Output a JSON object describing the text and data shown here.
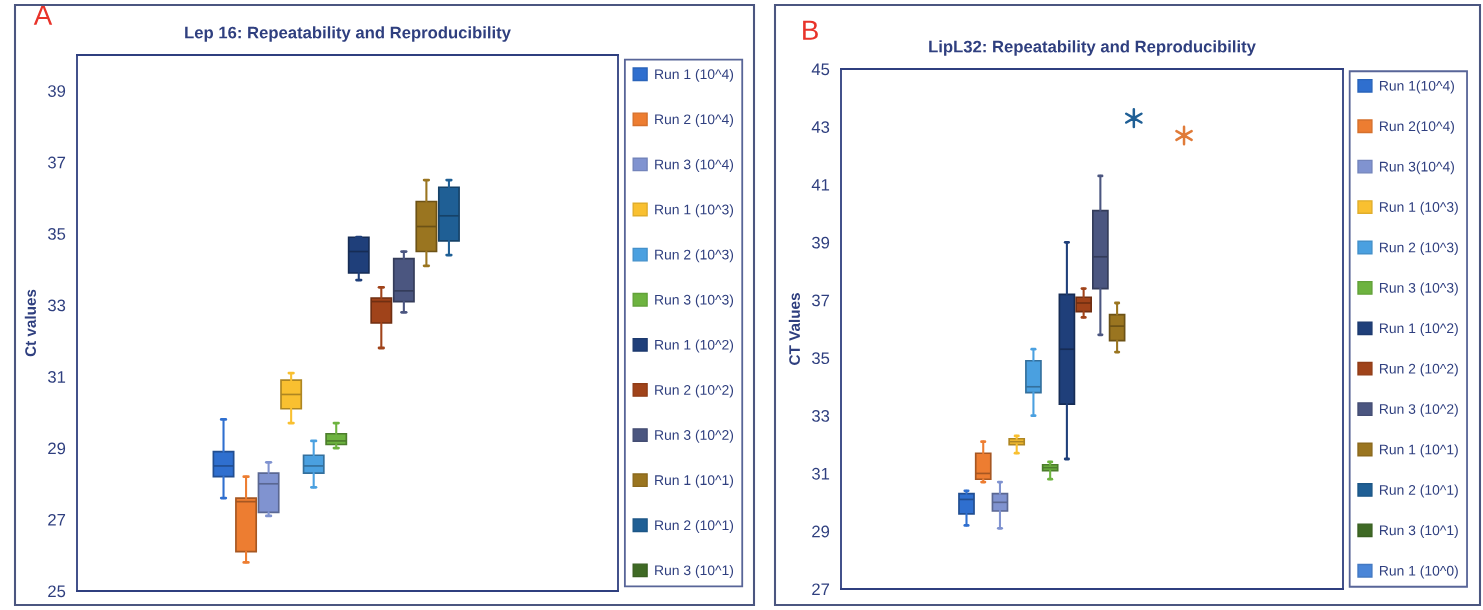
{
  "chart_data": [
    {
      "type": "box",
      "title": "Lep 16: Repeatability and Reproducibility",
      "ylabel": "Ct values",
      "annotations": [
        "A"
      ],
      "ylim": [
        25,
        40
      ],
      "yticks": [
        25,
        27,
        29,
        31,
        33,
        35,
        37,
        39
      ],
      "grid": false,
      "legend": "right",
      "categories": [
        null,
        null,
        null,
        null,
        null,
        null,
        null,
        null,
        null,
        null,
        null,
        null,
        null,
        null,
        null,
        null,
        null,
        null,
        null,
        null,
        null,
        null,
        null,
        null
      ],
      "series": [
        {
          "name": "Run 1 (10^4)",
          "color": "#2f6fcf",
          "boxes": [
            null,
            null,
            null,
            null,
            null,
            null,
            {
              "low": 27.6,
              "q1": 28.2,
              "median": 28.5,
              "q3": 28.9,
              "high": 29.8
            },
            null,
            null,
            null,
            null,
            null,
            null,
            null,
            null,
            null,
            null,
            null,
            null,
            null,
            null,
            null,
            null,
            null
          ]
        },
        {
          "name": "Run 2 (10^4)",
          "color": "#ed7d31",
          "boxes": [
            null,
            null,
            null,
            null,
            null,
            null,
            null,
            {
              "low": 25.8,
              "q1": 26.1,
              "median": 27.5,
              "q3": 27.6,
              "high": 28.2
            },
            null,
            null,
            null,
            null,
            null,
            null,
            null,
            null,
            null,
            null,
            null,
            null,
            null,
            null,
            null,
            null
          ]
        },
        {
          "name": "Run 3 (10^4)",
          "color": "#8093d0",
          "boxes": [
            null,
            null,
            null,
            null,
            null,
            null,
            null,
            null,
            {
              "low": 27.1,
              "q1": 27.2,
              "median": 28.0,
              "q3": 28.3,
              "high": 28.6
            },
            null,
            null,
            null,
            null,
            null,
            null,
            null,
            null,
            null,
            null,
            null,
            null,
            null,
            null,
            null
          ]
        },
        {
          "name": "Run 1 (10^3)",
          "color": "#f9c030",
          "boxes": [
            null,
            null,
            null,
            null,
            null,
            null,
            null,
            null,
            null,
            {
              "low": 29.7,
              "q1": 30.1,
              "median": 30.5,
              "q3": 30.9,
              "high": 31.1
            },
            null,
            null,
            null,
            null,
            null,
            null,
            null,
            null,
            null,
            null,
            null,
            null,
            null,
            null
          ]
        },
        {
          "name": "Run 2 (10^3)",
          "color": "#4aa0e0",
          "boxes": [
            null,
            null,
            null,
            null,
            null,
            null,
            null,
            null,
            null,
            null,
            {
              "low": 27.9,
              "q1": 28.3,
              "median": 28.5,
              "q3": 28.8,
              "high": 29.2
            },
            null,
            null,
            null,
            null,
            null,
            null,
            null,
            null,
            null,
            null,
            null,
            null,
            null
          ]
        },
        {
          "name": "Run 3 (10^3)",
          "color": "#6db33f",
          "boxes": [
            null,
            null,
            null,
            null,
            null,
            null,
            null,
            null,
            null,
            null,
            null,
            {
              "low": 29.0,
              "q1": 29.1,
              "median": 29.2,
              "q3": 29.4,
              "high": 29.7
            },
            null,
            null,
            null,
            null,
            null,
            null,
            null,
            null,
            null,
            null,
            null,
            null
          ]
        },
        {
          "name": "Run 1 (10^2)",
          "color": "#1f3f7a",
          "boxes": [
            null,
            null,
            null,
            null,
            null,
            null,
            null,
            null,
            null,
            null,
            null,
            null,
            {
              "low": 33.7,
              "q1": 33.9,
              "median": 34.5,
              "q3": 34.9,
              "high": 34.9
            },
            null,
            null,
            null,
            null,
            null,
            null,
            null,
            null,
            null,
            null,
            null
          ]
        },
        {
          "name": "Run 2 (10^2)",
          "color": "#a0431a",
          "boxes": [
            null,
            null,
            null,
            null,
            null,
            null,
            null,
            null,
            null,
            null,
            null,
            null,
            null,
            {
              "low": 31.8,
              "q1": 32.5,
              "median": 33.1,
              "q3": 33.2,
              "high": 33.5
            },
            null,
            null,
            null,
            null,
            null,
            null,
            null,
            null,
            null,
            null
          ]
        },
        {
          "name": "Run 3 (10^2)",
          "color": "#4b5680",
          "boxes": [
            null,
            null,
            null,
            null,
            null,
            null,
            null,
            null,
            null,
            null,
            null,
            null,
            null,
            null,
            {
              "low": 32.8,
              "q1": 33.1,
              "median": 33.4,
              "q3": 34.3,
              "high": 34.5
            },
            null,
            null,
            null,
            null,
            null,
            null,
            null,
            null,
            null
          ]
        },
        {
          "name": "Run 1 (10^1)",
          "color": "#9a7520",
          "boxes": [
            null,
            null,
            null,
            null,
            null,
            null,
            null,
            null,
            null,
            null,
            null,
            null,
            null,
            null,
            null,
            {
              "low": 34.1,
              "q1": 34.5,
              "median": 35.2,
              "q3": 35.9,
              "high": 36.5
            },
            null,
            null,
            null,
            null,
            null,
            null,
            null,
            null
          ]
        },
        {
          "name": "Run 2 (10^1)",
          "color": "#1f5f95",
          "boxes": [
            null,
            null,
            null,
            null,
            null,
            null,
            null,
            null,
            null,
            null,
            null,
            null,
            null,
            null,
            null,
            null,
            {
              "low": 34.4,
              "q1": 34.8,
              "median": 35.5,
              "q3": 36.3,
              "high": 36.5
            },
            null,
            null,
            null,
            null,
            null,
            null,
            null
          ]
        },
        {
          "name": "Run 3 (10^1)",
          "color": "#3f6a25",
          "boxes": [
            null,
            null,
            null,
            null,
            null,
            null,
            null,
            null,
            null,
            null,
            null,
            null,
            null,
            null,
            null,
            null,
            null,
            null,
            null,
            null,
            null,
            null,
            null,
            null
          ]
        }
      ]
    },
    {
      "type": "box",
      "title": "LipL32: Repeatability and Reproducibility",
      "ylabel": "CT Values",
      "annotations": [
        "B"
      ],
      "ylim": [
        27,
        45
      ],
      "yticks": [
        27,
        29,
        31,
        33,
        35,
        37,
        39,
        41,
        43,
        45
      ],
      "grid": false,
      "legend": "right",
      "marker": "cross",
      "categories": [
        null,
        null,
        null,
        null,
        null,
        null,
        null,
        null,
        null,
        null,
        null,
        null,
        null,
        null,
        null,
        null,
        null,
        null,
        null,
        null,
        null,
        null,
        null,
        null,
        null,
        null,
        null,
        null,
        null,
        null
      ],
      "series": [
        {
          "name": "Run 1(10^4)",
          "color": "#2f6fcf",
          "boxes": [
            null,
            null,
            null,
            null,
            null,
            null,
            null,
            {
              "low": 29.2,
              "q1": 29.6,
              "median": 30.1,
              "q3": 30.3,
              "high": 30.4
            },
            null,
            null,
            null,
            null,
            null,
            null,
            null,
            null,
            null,
            null,
            null,
            null,
            null,
            null,
            null,
            null,
            null,
            null,
            null,
            null,
            null,
            null
          ]
        },
        {
          "name": "Run 2(10^4)",
          "color": "#ed7d31",
          "boxes": [
            null,
            null,
            null,
            null,
            null,
            null,
            null,
            null,
            {
              "low": 30.7,
              "q1": 30.8,
              "median": 31.0,
              "q3": 31.7,
              "high": 32.1
            },
            null,
            null,
            null,
            null,
            null,
            null,
            null,
            null,
            null,
            null,
            null,
            null,
            null,
            null,
            null,
            null,
            null,
            null,
            null,
            null,
            null
          ]
        },
        {
          "name": "Run 3(10^4)",
          "color": "#8093d0",
          "boxes": [
            null,
            null,
            null,
            null,
            null,
            null,
            null,
            null,
            null,
            {
              "low": 29.1,
              "q1": 29.7,
              "median": 30.0,
              "q3": 30.3,
              "high": 30.7
            },
            null,
            null,
            null,
            null,
            null,
            null,
            null,
            null,
            null,
            null,
            null,
            null,
            null,
            null,
            null,
            null,
            null,
            null,
            null,
            null
          ]
        },
        {
          "name": "Run 1 (10^3)",
          "color": "#f9c030",
          "boxes": [
            null,
            null,
            null,
            null,
            null,
            null,
            null,
            null,
            null,
            null,
            {
              "low": 31.7,
              "q1": 32.0,
              "median": 32.1,
              "q3": 32.2,
              "high": 32.3
            },
            null,
            null,
            null,
            null,
            null,
            null,
            null,
            null,
            null,
            null,
            null,
            null,
            null,
            null,
            null,
            null,
            null,
            null,
            null
          ]
        },
        {
          "name": "Run 2 (10^3)",
          "color": "#4aa0e0",
          "boxes": [
            null,
            null,
            null,
            null,
            null,
            null,
            null,
            null,
            null,
            null,
            null,
            {
              "low": 33.0,
              "q1": 33.8,
              "median": 34.0,
              "q3": 34.9,
              "high": 35.3
            },
            null,
            null,
            null,
            null,
            null,
            null,
            null,
            null,
            null,
            null,
            null,
            null,
            null,
            null,
            null,
            null,
            null,
            null
          ]
        },
        {
          "name": "Run 3 (10^3)",
          "color": "#6db33f",
          "boxes": [
            null,
            null,
            null,
            null,
            null,
            null,
            null,
            null,
            null,
            null,
            null,
            null,
            {
              "low": 30.8,
              "q1": 31.1,
              "median": 31.2,
              "q3": 31.3,
              "high": 31.4
            },
            null,
            null,
            null,
            null,
            null,
            null,
            null,
            null,
            null,
            null,
            null,
            null,
            null,
            null,
            null,
            null,
            null
          ]
        },
        {
          "name": "Run 1 (10^2)",
          "color": "#1f3f7a",
          "boxes": [
            null,
            null,
            null,
            null,
            null,
            null,
            null,
            null,
            null,
            null,
            null,
            null,
            null,
            {
              "low": 31.5,
              "q1": 33.4,
              "median": 35.3,
              "q3": 37.2,
              "high": 39.0
            },
            null,
            null,
            null,
            null,
            null,
            null,
            null,
            null,
            null,
            null,
            null,
            null,
            null,
            null,
            null,
            null
          ]
        },
        {
          "name": "Run 2 (10^2)",
          "color": "#a0431a",
          "boxes": [
            null,
            null,
            null,
            null,
            null,
            null,
            null,
            null,
            null,
            null,
            null,
            null,
            null,
            null,
            {
              "low": 36.4,
              "q1": 36.6,
              "median": 36.9,
              "q3": 37.1,
              "high": 37.4
            },
            null,
            null,
            null,
            null,
            null,
            null,
            null,
            null,
            null,
            null,
            null,
            null,
            null,
            null,
            null
          ]
        },
        {
          "name": "Run 3 (10^2)",
          "color": "#4b5680",
          "boxes": [
            null,
            null,
            null,
            null,
            null,
            null,
            null,
            null,
            null,
            null,
            null,
            null,
            null,
            null,
            null,
            {
              "low": 35.8,
              "q1": 37.4,
              "median": 38.5,
              "q3": 40.1,
              "high": 41.3
            },
            null,
            null,
            null,
            null,
            null,
            null,
            null,
            null,
            null,
            null,
            null,
            null,
            null,
            null
          ]
        },
        {
          "name": "Run 1 (10^1)",
          "color": "#9a7520",
          "boxes": [
            null,
            null,
            null,
            null,
            null,
            null,
            null,
            null,
            null,
            null,
            null,
            null,
            null,
            null,
            null,
            null,
            {
              "low": 35.2,
              "q1": 35.6,
              "median": 36.1,
              "q3": 36.5,
              "high": 36.9
            },
            null,
            null,
            null,
            null,
            null,
            null,
            null,
            null,
            null,
            null,
            null,
            null,
            null
          ]
        },
        {
          "name": "Run 2 (10^1)",
          "color": "#1f5f95",
          "type": "scatter",
          "values": [
            null,
            null,
            null,
            null,
            null,
            null,
            null,
            null,
            null,
            null,
            null,
            null,
            null,
            null,
            null,
            null,
            null,
            43.3,
            null,
            null,
            null,
            null,
            null,
            null,
            null,
            null,
            null,
            null,
            null,
            null
          ]
        },
        {
          "name": "Run 3 (10^1)",
          "color": "#3f6a25",
          "boxes": [
            null,
            null,
            null,
            null,
            null,
            null,
            null,
            null,
            null,
            null,
            null,
            null,
            null,
            null,
            null,
            null,
            null,
            null,
            null,
            null,
            null,
            null,
            null,
            null,
            null,
            null,
            null,
            null,
            null,
            null
          ]
        },
        {
          "name": "Run 1 (10^0)",
          "color": "#4a86d8",
          "boxes": [
            null,
            null,
            null,
            null,
            null,
            null,
            null,
            null,
            null,
            null,
            null,
            null,
            null,
            null,
            null,
            null,
            null,
            null,
            null,
            null,
            null,
            null,
            null,
            null,
            null,
            null,
            null,
            null,
            null,
            null
          ]
        },
        {
          "color": "#e07b39",
          "type": "scatter",
          "values": [
            null,
            null,
            null,
            null,
            null,
            null,
            null,
            null,
            null,
            null,
            null,
            null,
            null,
            null,
            null,
            null,
            null,
            null,
            null,
            null,
            42.7,
            null,
            null,
            null,
            null,
            null,
            null,
            null,
            null,
            null
          ]
        }
      ]
    }
  ]
}
